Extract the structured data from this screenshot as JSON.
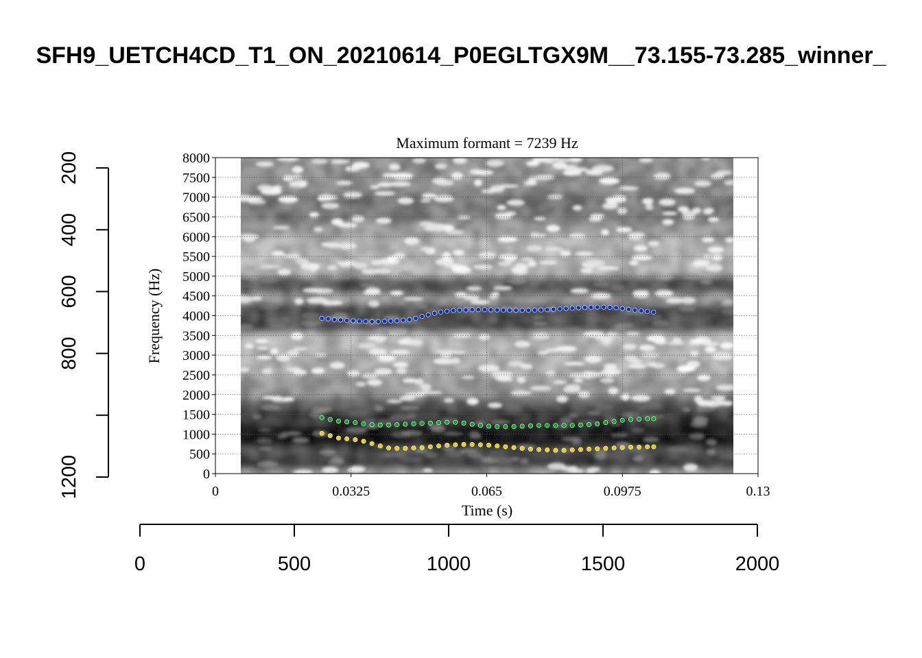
{
  "figure": {
    "main_title": "SFH9_UETCH4CD_T1_ON_20210614_P0EGLTGX9M__73.155-73.285_winner_",
    "panel_title": "Maximum formant  =  7239 Hz"
  },
  "chart_data": {
    "type": "scatter",
    "title": "Maximum formant  =  7239 Hz",
    "xlabel": "Time (s)",
    "ylabel": "Frequency (Hz)",
    "xlim": [
      0,
      0.13
    ],
    "ylim": [
      0,
      8000
    ],
    "x_ticks": [
      "0",
      "0.0325",
      "0.065",
      "0.0975",
      "0.13"
    ],
    "y_ticks": [
      "0",
      "500",
      "1000",
      "1500",
      "2000",
      "2500",
      "3000",
      "3500",
      "4000",
      "4500",
      "5000",
      "5500",
      "6000",
      "6500",
      "7000",
      "7500",
      "8000"
    ],
    "grid": true,
    "spectrogram_time_range": [
      0.006,
      0.124
    ],
    "series": [
      {
        "color": "#0033cc",
        "values_x": [
          0.0255,
          0.027,
          0.0285,
          0.03,
          0.0315,
          0.033,
          0.0345,
          0.036,
          0.0375,
          0.039,
          0.0405,
          0.042,
          0.0435,
          0.045,
          0.0465,
          0.048,
          0.0495,
          0.051,
          0.0525,
          0.054,
          0.0555,
          0.057,
          0.0585,
          0.06,
          0.0615,
          0.063,
          0.0645,
          0.066,
          0.0675,
          0.069,
          0.0705,
          0.072,
          0.0735,
          0.075,
          0.0765,
          0.078,
          0.0795,
          0.081,
          0.0825,
          0.084,
          0.0855,
          0.087,
          0.0885,
          0.09,
          0.0915,
          0.093,
          0.0945,
          0.096,
          0.0975,
          0.099,
          0.1005,
          0.102,
          0.1035,
          0.105
        ],
        "values_y": [
          3930,
          3920,
          3900,
          3890,
          3880,
          3870,
          3860,
          3855,
          3850,
          3850,
          3855,
          3860,
          3870,
          3885,
          3900,
          3930,
          3980,
          4020,
          4060,
          4090,
          4110,
          4130,
          4140,
          4145,
          4150,
          4150,
          4150,
          4148,
          4145,
          4140,
          4138,
          4135,
          4135,
          4135,
          4140,
          4145,
          4150,
          4160,
          4170,
          4180,
          4190,
          4200,
          4205,
          4210,
          4215,
          4215,
          4210,
          4200,
          4180,
          4160,
          4140,
          4120,
          4105,
          4090
        ]
      },
      {
        "color": "#00aa22",
        "values_x": [
          0.0255,
          0.0275,
          0.0295,
          0.0315,
          0.0335,
          0.0355,
          0.0375,
          0.0395,
          0.0415,
          0.0435,
          0.0455,
          0.0475,
          0.0495,
          0.0515,
          0.0535,
          0.0555,
          0.0575,
          0.0595,
          0.0615,
          0.0635,
          0.0655,
          0.0675,
          0.0695,
          0.0715,
          0.0735,
          0.0755,
          0.0775,
          0.0795,
          0.0815,
          0.0835,
          0.0855,
          0.0875,
          0.0895,
          0.0915,
          0.0935,
          0.0955,
          0.0975,
          0.0995,
          0.1015,
          0.1035,
          0.105
        ],
        "values_y": [
          1420,
          1370,
          1330,
          1310,
          1290,
          1260,
          1240,
          1230,
          1230,
          1240,
          1250,
          1260,
          1270,
          1280,
          1290,
          1300,
          1300,
          1280,
          1250,
          1220,
          1200,
          1190,
          1190,
          1190,
          1200,
          1210,
          1220,
          1220,
          1220,
          1220,
          1220,
          1230,
          1240,
          1260,
          1290,
          1320,
          1350,
          1370,
          1380,
          1390,
          1390
        ]
      },
      {
        "color": "#eecc00",
        "values_x": [
          0.0255,
          0.0275,
          0.0295,
          0.0315,
          0.0335,
          0.0355,
          0.0375,
          0.0395,
          0.0415,
          0.0435,
          0.0455,
          0.0475,
          0.0495,
          0.0515,
          0.0535,
          0.0555,
          0.0575,
          0.0595,
          0.0615,
          0.0635,
          0.0655,
          0.0675,
          0.0695,
          0.0715,
          0.0735,
          0.0755,
          0.0775,
          0.0795,
          0.0815,
          0.0835,
          0.0855,
          0.0875,
          0.0895,
          0.0915,
          0.0935,
          0.0955,
          0.0975,
          0.0995,
          0.1015,
          0.1035,
          0.105
        ],
        "values_y": [
          1020,
          960,
          900,
          880,
          860,
          820,
          760,
          700,
          650,
          640,
          640,
          650,
          660,
          680,
          700,
          720,
          730,
          740,
          740,
          730,
          720,
          700,
          680,
          660,
          640,
          620,
          610,
          600,
          590,
          590,
          600,
          610,
          620,
          630,
          640,
          650,
          660,
          670,
          670,
          680,
          680
        ]
      }
    ],
    "outer_axes": {
      "bottom_ticks": [
        "0",
        "500",
        "1000",
        "1500",
        "2000"
      ],
      "bottom_range": [
        0,
        2000
      ],
      "left_ticks": [
        "200",
        "400",
        "600",
        "800",
        "1200"
      ],
      "left_range": [
        200,
        1200
      ]
    }
  }
}
